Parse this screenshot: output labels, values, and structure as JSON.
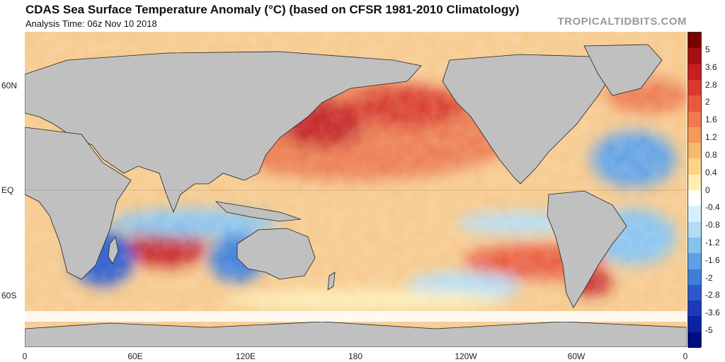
{
  "header": {
    "title": "CDAS Sea Surface Temperature Anomaly (°C) (based on CFSR 1981-2010 Climatology)",
    "subtitle": "Analysis Time: 06z Nov 10 2018",
    "site": "TROPICALTIDBITS.COM"
  },
  "map": {
    "land_color": "#c0c0c0",
    "ice_color": "#ffffff",
    "border_color": "#222222",
    "lat_labels": [
      "60N",
      "EQ",
      "60S"
    ],
    "lon_labels": [
      "0",
      "60E",
      "120E",
      "180",
      "120W",
      "60W",
      "0"
    ]
  },
  "colorbar": {
    "labels": [
      "5",
      "3.6",
      "2.8",
      "2",
      "1.6",
      "1.2",
      "0.8",
      "0.4",
      "0",
      "-0.4",
      "-0.8",
      "-1.2",
      "-1.6",
      "-2",
      "-2.8",
      "-3.6",
      "-5"
    ],
    "colors": [
      "#7a0000",
      "#a51010",
      "#c42020",
      "#d83a2c",
      "#e85a3a",
      "#f07a4c",
      "#f59a5c",
      "#f8b870",
      "#fbd48a",
      "#fdeeb4",
      "#ffffff",
      "#d6f0fa",
      "#b0dcf5",
      "#86c2ee",
      "#5ea0e4",
      "#3e7ed8",
      "#2a58cc",
      "#1a3ab8",
      "#0c22a0",
      "#000c80"
    ]
  }
}
